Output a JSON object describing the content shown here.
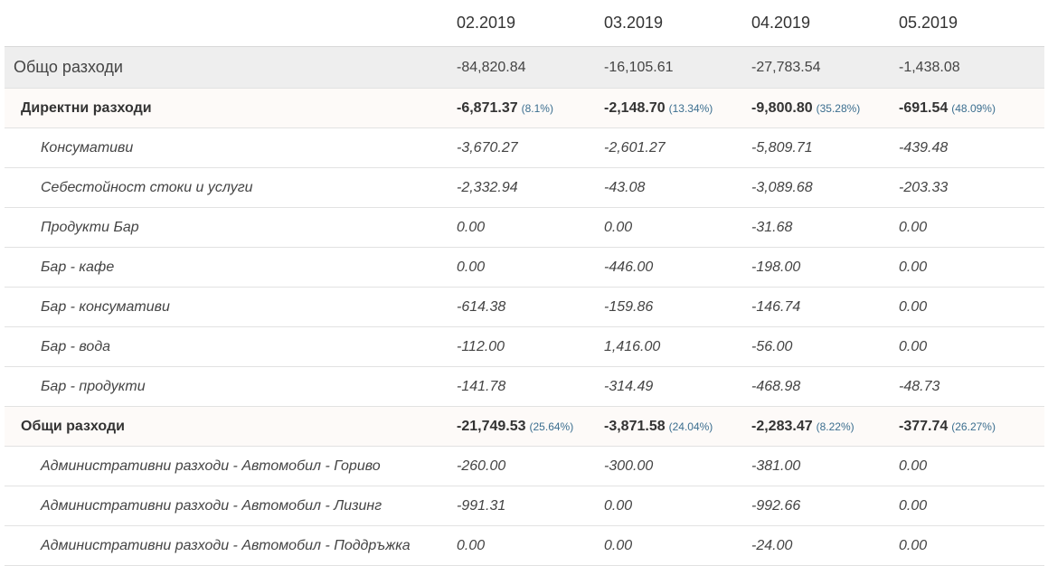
{
  "columns": [
    "02.2019",
    "03.2019",
    "04.2019",
    "05.2019"
  ],
  "rows": [
    {
      "type": "total",
      "label": "Общо разходи",
      "values": [
        "-84,820.84",
        "-16,105.61",
        "-27,783.54",
        "-1,438.08"
      ]
    },
    {
      "type": "group",
      "label": "Директни разходи",
      "values": [
        "-6,871.37",
        "-2,148.70",
        "-9,800.80",
        "-691.54"
      ],
      "pcts": [
        "(8.1%)",
        "(13.34%)",
        "(35.28%)",
        "(48.09%)"
      ]
    },
    {
      "type": "item",
      "label": "Консумативи",
      "values": [
        "-3,670.27",
        "-2,601.27",
        "-5,809.71",
        "-439.48"
      ]
    },
    {
      "type": "item",
      "label": "Себестойност стоки и услуги",
      "values": [
        "-2,332.94",
        "-43.08",
        "-3,089.68",
        "-203.33"
      ]
    },
    {
      "type": "item",
      "label": "Продукти Бар",
      "values": [
        "0.00",
        "0.00",
        "-31.68",
        "0.00"
      ]
    },
    {
      "type": "item",
      "label": "Бар - кафе",
      "values": [
        "0.00",
        "-446.00",
        "-198.00",
        "0.00"
      ]
    },
    {
      "type": "item",
      "label": "Бар - консумативи",
      "values": [
        "-614.38",
        "-159.86",
        "-146.74",
        "0.00"
      ]
    },
    {
      "type": "item",
      "label": "Бар - вода",
      "values": [
        "-112.00",
        "1,416.00",
        "-56.00",
        "0.00"
      ]
    },
    {
      "type": "item",
      "label": "Бар - продукти",
      "values": [
        "-141.78",
        "-314.49",
        "-468.98",
        "-48.73"
      ]
    },
    {
      "type": "group",
      "label": "Общи разходи",
      "values": [
        "-21,749.53",
        "-3,871.58",
        "-2,283.47",
        "-377.74"
      ],
      "pcts": [
        "(25.64%)",
        "(24.04%)",
        "(8.22%)",
        "(26.27%)"
      ]
    },
    {
      "type": "item",
      "label": "Административни разходи - Автомобил - Гориво",
      "values": [
        "-260.00",
        "-300.00",
        "-381.00",
        "0.00"
      ]
    },
    {
      "type": "item",
      "label": "Административни разходи - Автомобил - Лизинг",
      "values": [
        "-991.31",
        "0.00",
        "-992.66",
        "0.00"
      ]
    },
    {
      "type": "item",
      "label": "Административни разходи - Автомобил - Поддръжка",
      "values": [
        "0.00",
        "0.00",
        "-24.00",
        "0.00"
      ]
    }
  ]
}
